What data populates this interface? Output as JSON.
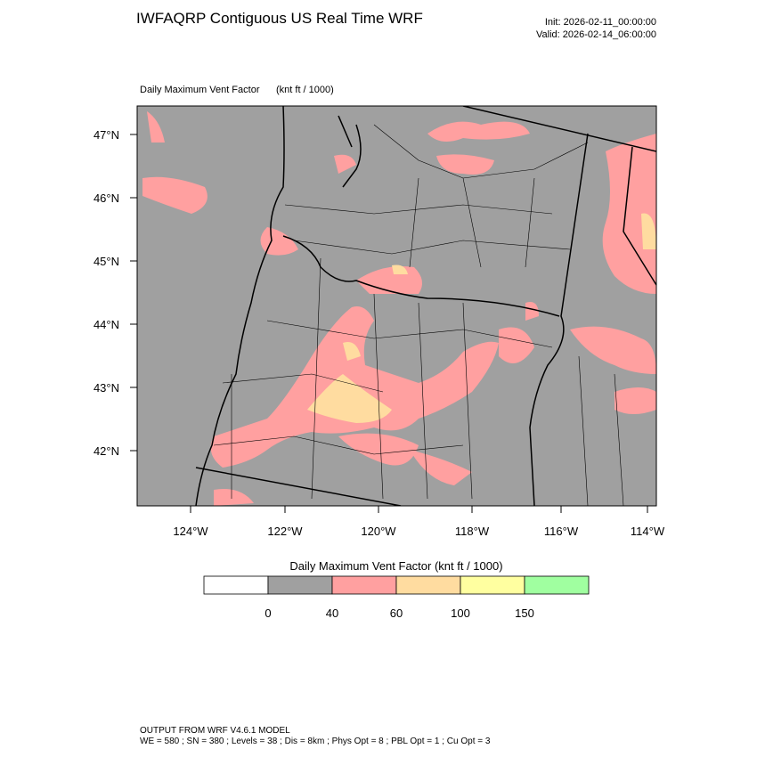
{
  "header": {
    "title": "IWFAQRP Contiguous US Real Time WRF",
    "init": "Init: 2026-02-11_00:00:00",
    "valid": "Valid: 2026-02-14_06:00:00"
  },
  "map": {
    "field_label": "Daily Maximum Vent Factor",
    "units": "(knt ft / 1000)",
    "lon_labels": [
      "124°W",
      "122°W",
      "120°W",
      "118°W",
      "116°W",
      "114°W"
    ],
    "lat_labels": [
      "47°N",
      "46°N",
      "45°N",
      "44°N",
      "43°N",
      "42°N"
    ]
  },
  "colorbar": {
    "title": "Daily Maximum Vent Factor  (knt ft / 1000)",
    "colors": [
      "#ffffff",
      "#a0a0a0",
      "#ffa0a0",
      "#ffdca0",
      "#ffffa0",
      "#a0ffa0"
    ],
    "labels": [
      "0",
      "40",
      "60",
      "100",
      "150"
    ]
  },
  "footer": {
    "line1": "OUTPUT FROM WRF V4.6.1 MODEL",
    "line2": "WE = 580 ; SN = 380 ; Levels = 38 ; Dis = 8km ; Phys Opt = 8 ; PBL Opt = 1 ; Cu Opt = 3"
  }
}
